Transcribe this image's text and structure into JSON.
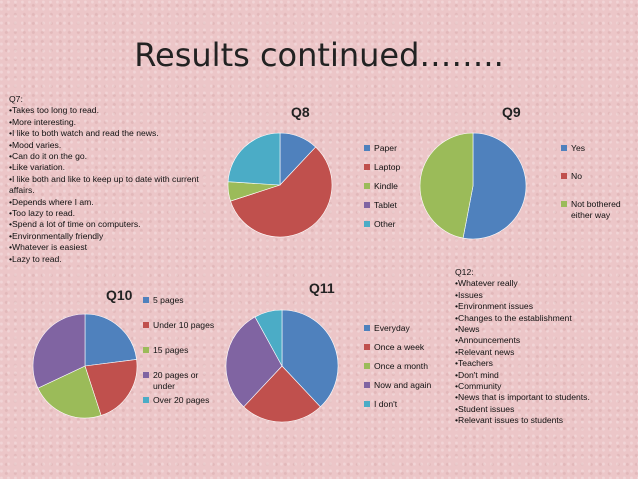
{
  "title": "Results continued……..",
  "q7": {
    "heading": "Q7:",
    "items": [
      "Takes too long to read.",
      "More interesting.",
      "I like to both watch and read the news.",
      "Mood varies.",
      "Can do it on the go.",
      "Like variation.",
      "I like both and like to keep up to date with current affairs.",
      "Depends where I am.",
      "Too lazy to read.",
      "Spend a lot of time on computers.",
      "Environmentally friendly",
      "Whatever is easiest",
      "Lazy to read."
    ]
  },
  "q12": {
    "heading": "Q12:",
    "items": [
      "Whatever really",
      "Issues",
      "Environment issues",
      "Changes to the establishment",
      "News",
      "Announcements",
      "Relevant news",
      "Teachers",
      "Don't mind",
      "Community",
      "News that is important to students.",
      "Student issues",
      "Relevant issues to students"
    ]
  },
  "chart_data": [
    {
      "type": "pie",
      "title": "Q8",
      "categories": [
        "Paper",
        "Laptop",
        "Kindle",
        "Tablet",
        "Other"
      ],
      "values": [
        12,
        58,
        6,
        0,
        24
      ],
      "colors": [
        "#4f81bd",
        "#c0504d",
        "#9bbb59",
        "#8064a2",
        "#4bacc6"
      ]
    },
    {
      "type": "pie",
      "title": "Q9",
      "categories": [
        "Yes",
        "No",
        "Not bothered either way"
      ],
      "values": [
        53,
        0,
        47
      ],
      "colors": [
        "#4f81bd",
        "#c0504d",
        "#9bbb59"
      ]
    },
    {
      "type": "pie",
      "title": "Q10",
      "categories": [
        "5 pages",
        "Under 10 pages",
        "15 pages",
        "20 pages or under",
        "Over 20 pages"
      ],
      "values": [
        23,
        22,
        23,
        32,
        0
      ],
      "colors": [
        "#4f81bd",
        "#c0504d",
        "#9bbb59",
        "#8064a2",
        "#4bacc6"
      ]
    },
    {
      "type": "pie",
      "title": "Q11",
      "categories": [
        "Everyday",
        "Once a week",
        "Once a month",
        "Now and again",
        "I don't"
      ],
      "values": [
        38,
        24,
        0,
        30,
        8
      ],
      "colors": [
        "#4f81bd",
        "#c0504d",
        "#9bbb59",
        "#8064a2",
        "#4bacc6"
      ]
    }
  ]
}
